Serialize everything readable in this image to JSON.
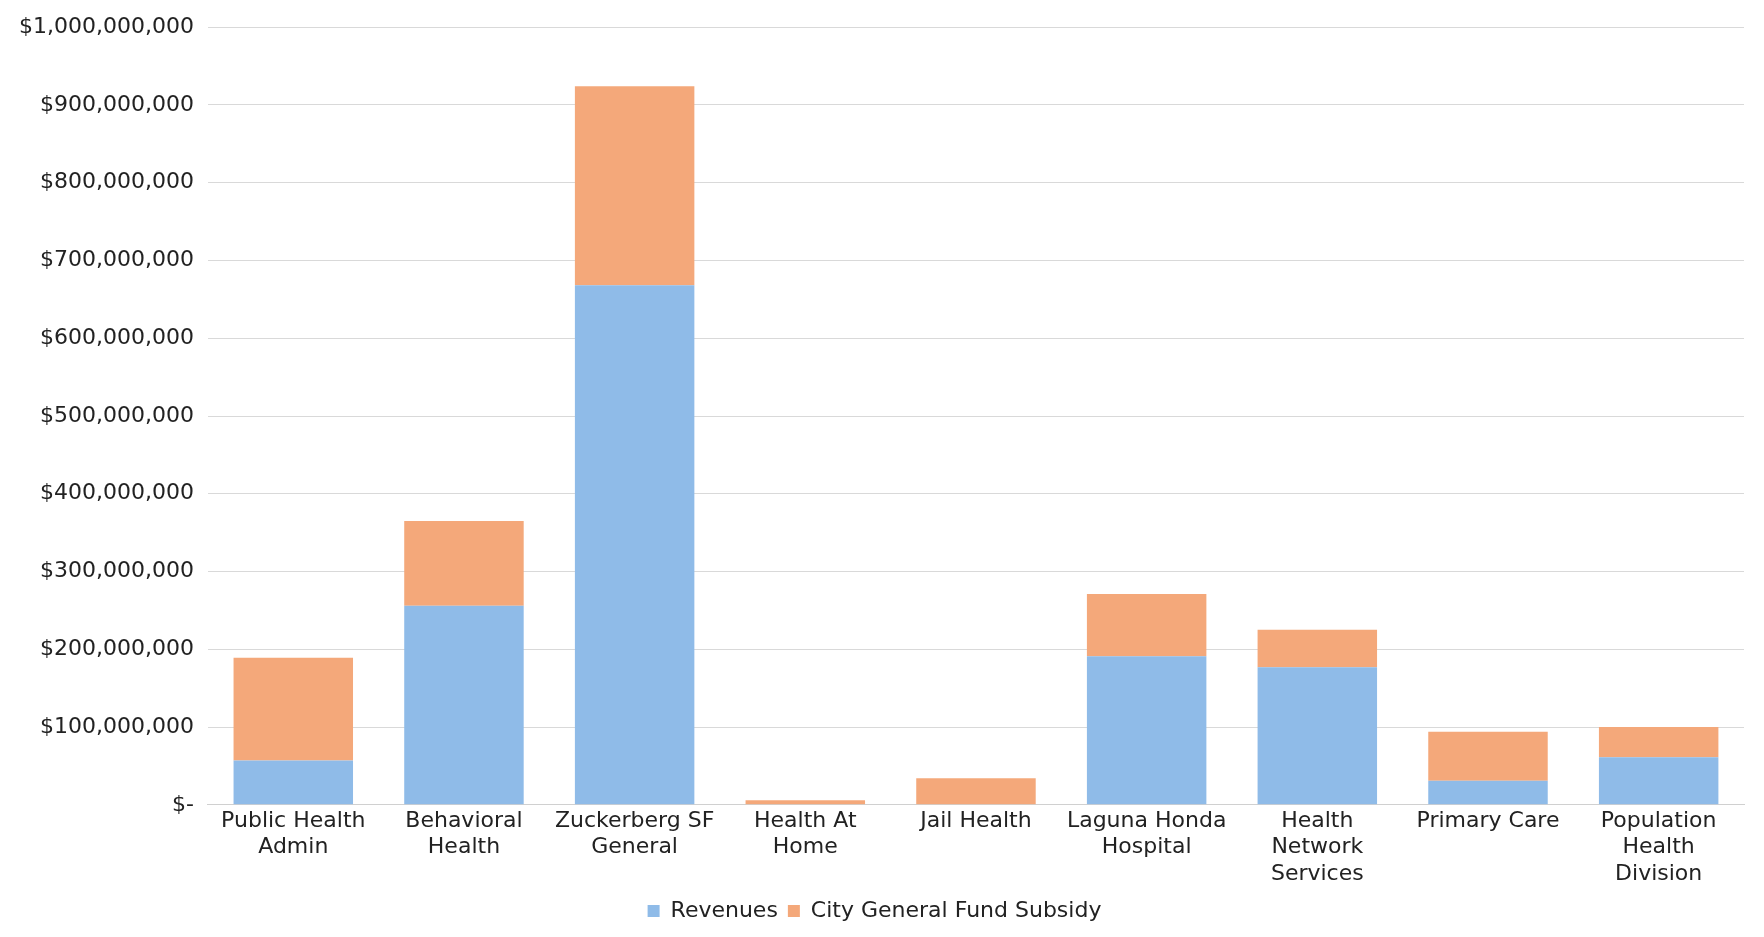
{
  "chart_data": {
    "type": "bar",
    "stacked": true,
    "categories": [
      "Public Health Admin",
      "Behavioral Health",
      "Zuckerberg SF General",
      "Health At Home",
      "Jail Health",
      "Laguna Honda Hospital",
      "Health Network Services",
      "Primary Care",
      "Population Health Division"
    ],
    "series": [
      {
        "name": "Revenues",
        "color": "#8fbbe8",
        "values": [
          57000000,
          256000000,
          668000000,
          0,
          0,
          191000000,
          177000000,
          31000000,
          61000000
        ]
      },
      {
        "name": "City General Fund Subsidy",
        "color": "#f4a87a",
        "values": [
          132000000,
          109000000,
          256000000,
          6000000,
          34000000,
          80000000,
          48000000,
          63000000,
          39000000
        ]
      }
    ],
    "ylim": [
      0,
      1000000000
    ],
    "yticks": [
      {
        "value": 0,
        "label": "$-"
      },
      {
        "value": 100000000,
        "label": "$100,000,000"
      },
      {
        "value": 200000000,
        "label": "$200,000,000"
      },
      {
        "value": 300000000,
        "label": "$300,000,000"
      },
      {
        "value": 400000000,
        "label": "$400,000,000"
      },
      {
        "value": 500000000,
        "label": "$500,000,000"
      },
      {
        "value": 600000000,
        "label": "$600,000,000"
      },
      {
        "value": 700000000,
        "label": "$700,000,000"
      },
      {
        "value": 800000000,
        "label": "$800,000,000"
      },
      {
        "value": 900000000,
        "label": "$900,000,000"
      },
      {
        "value": 1000000000,
        "label": "$1,000,000,000"
      }
    ],
    "grid": "y",
    "legend": "bottom"
  }
}
